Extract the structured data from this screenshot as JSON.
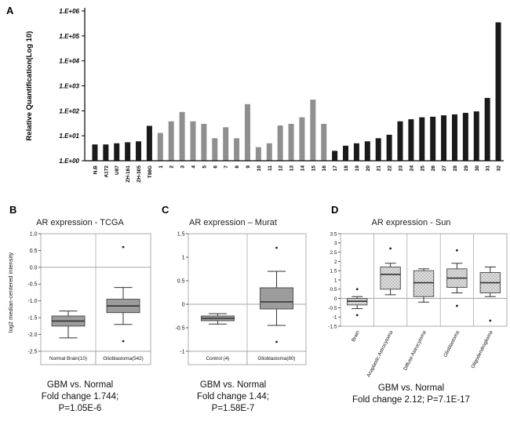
{
  "panels": {
    "a": {
      "label": "A"
    },
    "b": {
      "label": "B"
    },
    "c": {
      "label": "C"
    },
    "d": {
      "label": "D"
    }
  },
  "chart_data": [
    {
      "id": "qpcr-bar",
      "type": "bar",
      "title": "",
      "xlabel": "",
      "ylabel": "Relative Quantification(Log 10)",
      "yscale": "log10",
      "ylim": [
        1,
        1000000
      ],
      "ytick_labels": [
        "1.E+00",
        "1.E+01",
        "1.E+02",
        "1.E+03",
        "1.E+04",
        "1.E+05",
        "1.E+06"
      ],
      "categories": [
        "N.B",
        "A172",
        "U87",
        "ZH-161",
        "ZH-305",
        "T98G",
        "1",
        "2",
        "3",
        "4",
        "5",
        "6",
        "7",
        "8",
        "9",
        "10",
        "11",
        "12",
        "13",
        "14",
        "15",
        "16",
        "17",
        "18",
        "19",
        "20",
        "21",
        "22",
        "23",
        "24",
        "25",
        "26",
        "27",
        "28",
        "29",
        "30",
        "31",
        "32"
      ],
      "values": [
        4.5,
        4.5,
        5,
        5.5,
        6,
        25,
        13,
        38,
        90,
        38,
        30,
        8,
        22,
        8,
        185,
        3.5,
        5,
        26,
        30,
        55,
        280,
        30,
        2.5,
        4,
        5,
        6,
        8,
        11,
        38,
        46,
        55,
        58,
        66,
        72,
        83,
        95,
        330,
        350000
      ],
      "bar_colors": [
        "black",
        "black",
        "black",
        "black",
        "black",
        "black",
        "gray",
        "gray",
        "gray",
        "gray",
        "gray",
        "gray",
        "gray",
        "gray",
        "gray",
        "gray",
        "gray",
        "gray",
        "gray",
        "gray",
        "gray",
        "gray",
        "black",
        "black",
        "black",
        "black",
        "black",
        "black",
        "black",
        "black",
        "black",
        "black",
        "black",
        "black",
        "black",
        "black",
        "black",
        "black"
      ],
      "colors": {
        "black": "#1a1a1a",
        "gray": "#8f8f8f"
      },
      "grid": false,
      "legend": false
    },
    {
      "id": "tcga-box",
      "type": "box",
      "title": "AR expression - TCGA",
      "ylabel": "log2 median-centered intensity",
      "ylim": [
        -2.5,
        1.0
      ],
      "yticks": [
        1.0,
        0.5,
        0.0,
        -0.5,
        -1.0,
        -1.5,
        -2.0,
        -2.5
      ],
      "ytick_labels": [
        "1.0",
        "0.5",
        "0.0",
        "-0.5",
        "-1.0",
        "-1.5",
        "-2.0",
        "-2.5"
      ],
      "zero_line": true,
      "label_style": "cells",
      "groups": [
        {
          "label": "Normal Brain(10)",
          "whislo": -2.1,
          "q1": -1.75,
          "med": -1.6,
          "q3": -1.45,
          "whishi": -1.3,
          "outliers": []
        },
        {
          "label": "Glioblastoma(542)",
          "whislo": -1.7,
          "q1": -1.35,
          "med": -1.15,
          "q3": -0.95,
          "whishi": -0.6,
          "outliers": [
            0.6,
            -2.2
          ]
        }
      ],
      "caption": [
        "GBM vs. Normal",
        "Fold change 1.744;",
        "P=1.05E-6"
      ]
    },
    {
      "id": "murat-box",
      "type": "box",
      "title": "AR expression – Murat",
      "ylabel": "",
      "ylim": [
        -1,
        1.5
      ],
      "yticks": [
        1.5,
        1,
        0.5,
        0,
        -0.5,
        -1
      ],
      "ytick_labels": [
        "1.5",
        "1",
        "0.5",
        "0",
        "-0.5",
        "-1"
      ],
      "zero_line": true,
      "label_style": "cells",
      "groups": [
        {
          "label": "Control (4)",
          "whislo": -0.42,
          "q1": -0.35,
          "med": -0.3,
          "q3": -0.25,
          "whishi": -0.2,
          "outliers": []
        },
        {
          "label": "Glioblastoma(80)",
          "whislo": -0.45,
          "q1": -0.1,
          "med": 0.05,
          "q3": 0.35,
          "whishi": 0.7,
          "outliers": [
            1.2,
            -0.8
          ]
        }
      ],
      "caption": [
        "GBM vs. Normal",
        "Fold change 1.44;",
        "P=1.58E-7"
      ]
    },
    {
      "id": "sun-box",
      "type": "box",
      "title": "AR expression - Sun",
      "ylabel": "",
      "ylim": [
        -1.5,
        3.5
      ],
      "yticks": [
        3.5,
        3,
        2.5,
        2,
        1.5,
        1,
        0.5,
        0,
        -0.5,
        -1,
        -1.5
      ],
      "ytick_labels": [
        "3.5",
        "3",
        "2.5",
        "2",
        "1.5",
        "1",
        "0.5",
        "0",
        "-0.5",
        "-1",
        "-1.5"
      ],
      "zero_line": true,
      "label_style": "rotated",
      "groups": [
        {
          "label": "Brain",
          "whislo": -0.55,
          "q1": -0.35,
          "med": -0.15,
          "q3": 0.0,
          "whishi": 0.1,
          "outliers": [
            0.5,
            -0.9
          ]
        },
        {
          "label": "Anaplastic Astrocytoma",
          "whislo": 0.2,
          "q1": 0.5,
          "med": 1.3,
          "q3": 1.7,
          "whishi": 1.9,
          "outliers": [
            2.7
          ]
        },
        {
          "label": "Diffuse Astrocytoma",
          "whislo": -0.2,
          "q1": 0.1,
          "med": 0.85,
          "q3": 1.5,
          "whishi": 1.6,
          "outliers": []
        },
        {
          "label": "Glioblastoma",
          "whislo": 0.3,
          "q1": 0.6,
          "med": 1.1,
          "q3": 1.6,
          "whishi": 1.9,
          "outliers": [
            2.6,
            -0.4
          ]
        },
        {
          "label": "Oligodendroglioma",
          "whislo": 0.1,
          "q1": 0.3,
          "med": 0.85,
          "q3": 1.4,
          "whishi": 1.7,
          "outliers": [
            -1.2
          ]
        }
      ],
      "caption": [
        "GBM vs. Normal",
        "Fold change 2.12; P=7.1E-17"
      ]
    }
  ]
}
